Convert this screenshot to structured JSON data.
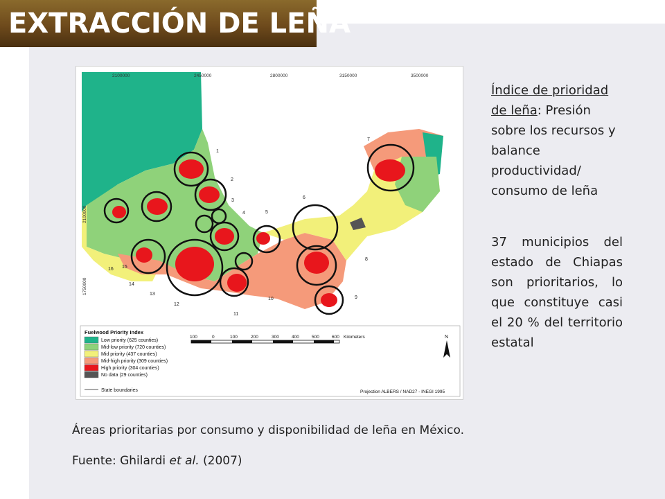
{
  "header": {
    "title": "EXTRACCIÓN DE LEÑA"
  },
  "side": {
    "index_term": "Índice de prioridad de leña",
    "index_desc": ": Presión sobre los recursos y balance productividad/ consumo de leña",
    "chiapas_note": "37 municipios del estado de Chiapas son prioritarios, lo que constituye casi el 20 % del territorio estatal"
  },
  "caption": {
    "line1": "Áreas prioritarias por consumo y disponibilidad de leña en México.",
    "source_prefix": "Fuente: Ghilardi ",
    "source_italic": "et al.",
    "source_suffix": " (2007)"
  },
  "map": {
    "top_ticks": [
      "2100000",
      "2450000",
      "2800000",
      "3150000",
      "3500000"
    ],
    "left_ticks": [
      "2100000",
      "1750000"
    ],
    "circle_numbers": [
      "1",
      "2",
      "3",
      "4",
      "5",
      "6",
      "7",
      "8",
      "9",
      "10",
      "11",
      "12",
      "13",
      "14",
      "15",
      "16"
    ],
    "legend": {
      "title": "Fuelwood Priority Index",
      "items": [
        {
          "label": "Low priority (625 counties)",
          "color": "#1fb38a"
        },
        {
          "label": "Mid-low priority (720 counties)",
          "color": "#8fd27a"
        },
        {
          "label": "Mid priority (437 counties)",
          "color": "#f2f07a"
        },
        {
          "label": "Mid-high priority (309 counties)",
          "color": "#f59a7a"
        },
        {
          "label": "High priority (304 counties)",
          "color": "#e8161c"
        },
        {
          "label": "No data (29 counties)",
          "color": "#555555"
        }
      ],
      "boundary_label": "State boundaries"
    },
    "scale_ticks": [
      "100",
      "0",
      "100",
      "200",
      "300",
      "400",
      "500",
      "600"
    ],
    "scale_unit": "Kilometers",
    "north": "N",
    "projection": "Projection ALBERS / NAD27 - INEGI 1995"
  }
}
